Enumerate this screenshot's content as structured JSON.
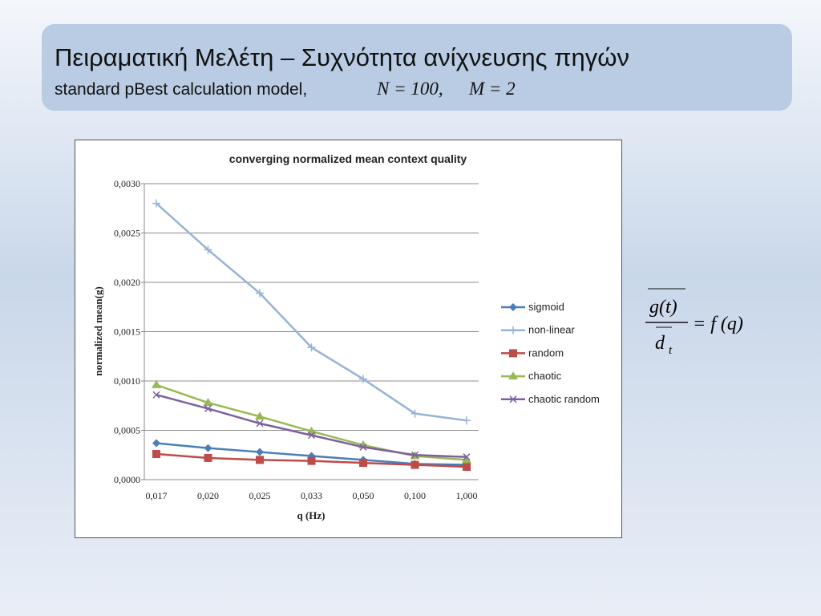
{
  "header": {
    "title": "Πειραματική Μελέτη – Συχνότητα ανίχνευσης πηγών",
    "subtitle": "standard pBest calculation model,",
    "subtitle_math": [
      "N = 100,",
      "M = 2"
    ]
  },
  "formula": {
    "numerator": "g(t)",
    "denominator": "d",
    "denominator_sub": "t",
    "rhs": "= f (q)"
  },
  "chart_data": {
    "type": "line",
    "title": "converging normalized mean context quality",
    "x_label": "q (Hz)",
    "y_label": "normalized mean(g)",
    "categories": [
      "0,017",
      "0,020",
      "0,025",
      "0,033",
      "0,050",
      "0,100",
      "1,000"
    ],
    "ylim": [
      0,
      0.003
    ],
    "yticks": [
      {
        "value": 0,
        "label": "0,0000"
      },
      {
        "value": 0.0005,
        "label": "0,0005"
      },
      {
        "value": 0.001,
        "label": "0,0010"
      },
      {
        "value": 0.0015,
        "label": "0,0015"
      },
      {
        "value": 0.002,
        "label": "0,0020"
      },
      {
        "value": 0.0025,
        "label": "0,0025"
      },
      {
        "value": 0.003,
        "label": "0,0030"
      }
    ],
    "grid": true,
    "legend": "right",
    "series": [
      {
        "name": "sigmoid",
        "color": "#4a7ebb",
        "marker": "diamond",
        "values": [
          0.00037,
          0.00032,
          0.00028,
          0.00024,
          0.0002,
          0.00016,
          0.00015
        ]
      },
      {
        "name": "non-linear",
        "color": "#95b3d7",
        "marker": "plus",
        "values": [
          0.0028,
          0.00233,
          0.00189,
          0.00134,
          0.00102,
          0.00067,
          0.0006
        ]
      },
      {
        "name": "random",
        "color": "#be4b48",
        "marker": "square",
        "values": [
          0.00026,
          0.00022,
          0.0002,
          0.00019,
          0.00017,
          0.00015,
          0.00013
        ]
      },
      {
        "name": "chaotic",
        "color": "#98b954",
        "marker": "triangle",
        "values": [
          0.00096,
          0.00078,
          0.00064,
          0.00049,
          0.00035,
          0.00024,
          0.0002
        ]
      },
      {
        "name": "chaotic random",
        "color": "#7d60a0",
        "marker": "cross",
        "values": [
          0.00086,
          0.00072,
          0.00057,
          0.00045,
          0.00033,
          0.00025,
          0.00023
        ]
      }
    ]
  }
}
